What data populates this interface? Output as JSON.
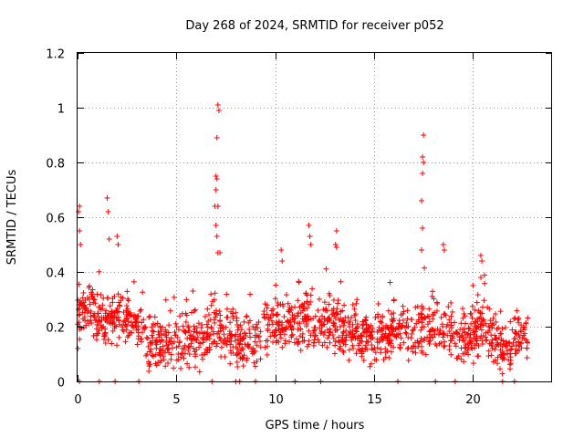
{
  "chart_data": {
    "type": "scatter",
    "title": "Day 268 of 2024, SRMTID for receiver p052",
    "xlabel": "GPS time / hours",
    "ylabel": "SRMTID / TECUs",
    "xlim": [
      0,
      24
    ],
    "ylim": [
      0,
      1.2
    ],
    "xticks": [
      0,
      5,
      10,
      15,
      20
    ],
    "xtick_labels": [
      "0",
      "5",
      "10",
      "15",
      "20"
    ],
    "yticks": [
      0,
      0.2,
      0.4,
      0.6,
      0.8,
      1,
      1.2
    ],
    "ytick_labels": [
      "0",
      "0.2",
      "0.4",
      "0.6",
      "0.8",
      "1",
      "1.2"
    ],
    "grid": true,
    "marker": "+",
    "color": "#ff0000",
    "series": [
      {
        "name": "SRMTID",
        "points_description": "dense time series of per-satellite SRMTID values sampled every ~30 s over the day",
        "baseline_profile": [
          [
            0.0,
            0.24
          ],
          [
            0.5,
            0.27
          ],
          [
            1.0,
            0.22
          ],
          [
            1.5,
            0.22
          ],
          [
            2.0,
            0.25
          ],
          [
            2.5,
            0.22
          ],
          [
            3.0,
            0.2
          ],
          [
            3.5,
            0.14
          ],
          [
            4.0,
            0.13
          ],
          [
            5.0,
            0.14
          ],
          [
            6.0,
            0.15
          ],
          [
            6.5,
            0.17
          ],
          [
            7.0,
            0.2
          ],
          [
            7.5,
            0.16
          ],
          [
            8.0,
            0.14
          ],
          [
            9.0,
            0.15
          ],
          [
            9.5,
            0.18
          ],
          [
            10.0,
            0.22
          ],
          [
            10.5,
            0.2
          ],
          [
            11.0,
            0.2
          ],
          [
            11.5,
            0.22
          ],
          [
            12.0,
            0.2
          ],
          [
            13.0,
            0.2
          ],
          [
            14.0,
            0.18
          ],
          [
            15.0,
            0.15
          ],
          [
            16.0,
            0.18
          ],
          [
            17.0,
            0.17
          ],
          [
            17.5,
            0.2
          ],
          [
            18.0,
            0.2
          ],
          [
            19.0,
            0.18
          ],
          [
            20.0,
            0.16
          ],
          [
            20.5,
            0.2
          ],
          [
            21.0,
            0.17
          ],
          [
            21.5,
            0.1
          ],
          [
            22.0,
            0.14
          ],
          [
            22.8,
            0.17
          ]
        ],
        "spikes": [
          [
            0.1,
            0.64
          ],
          [
            0.05,
            0.62
          ],
          [
            0.1,
            0.55
          ],
          [
            0.15,
            0.5
          ],
          [
            1.5,
            0.67
          ],
          [
            1.55,
            0.62
          ],
          [
            1.6,
            0.52
          ],
          [
            2.0,
            0.53
          ],
          [
            2.05,
            0.5
          ],
          [
            7.1,
            1.01
          ],
          [
            7.15,
            0.99
          ],
          [
            7.05,
            0.89
          ],
          [
            7.0,
            0.75
          ],
          [
            7.05,
            0.74
          ],
          [
            7.0,
            0.7
          ],
          [
            6.95,
            0.64
          ],
          [
            7.1,
            0.64
          ],
          [
            7.0,
            0.57
          ],
          [
            7.05,
            0.53
          ],
          [
            7.2,
            0.47
          ],
          [
            7.1,
            0.47
          ],
          [
            11.7,
            0.57
          ],
          [
            11.75,
            0.53
          ],
          [
            11.8,
            0.5
          ],
          [
            13.1,
            0.55
          ],
          [
            13.05,
            0.5
          ],
          [
            13.1,
            0.49
          ],
          [
            17.5,
            0.9
          ],
          [
            17.45,
            0.82
          ],
          [
            17.5,
            0.8
          ],
          [
            17.45,
            0.76
          ],
          [
            17.4,
            0.66
          ],
          [
            17.45,
            0.56
          ],
          [
            17.4,
            0.48
          ],
          [
            18.5,
            0.5
          ],
          [
            18.55,
            0.48
          ],
          [
            20.4,
            0.46
          ],
          [
            20.45,
            0.44
          ],
          [
            20.4,
            0.38
          ],
          [
            10.3,
            0.48
          ],
          [
            10.35,
            0.44
          ]
        ],
        "zero_points": [
          0.1,
          1.1,
          1.9,
          3.1,
          6.8,
          8.0,
          8.2,
          9.0,
          11.0,
          12.3,
          16.2,
          18.1,
          19.1,
          21.5,
          22.1
        ]
      }
    ]
  }
}
